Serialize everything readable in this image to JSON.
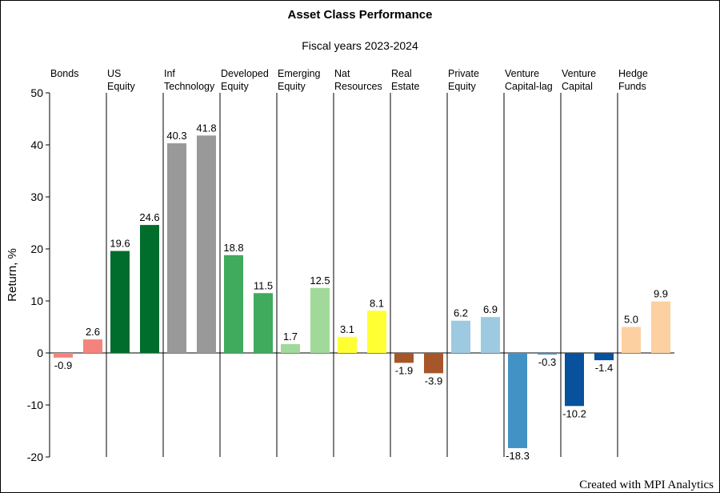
{
  "title": "Asset Class Performance",
  "subtitle": "Fiscal years 2023-2024",
  "credit": "Created with MPI Analytics",
  "chart_data": {
    "type": "bar",
    "title": "Asset Class Performance",
    "subtitle": "Fiscal years 2023-2024",
    "xlabel": "",
    "ylabel": "Return, %",
    "ylim": [
      -20,
      50
    ],
    "yticks": [
      -20,
      -10,
      0,
      10,
      20,
      30,
      40,
      50
    ],
    "grid": false,
    "groups": [
      {
        "label": [
          "Bonds"
        ],
        "values": [
          -0.9,
          2.6
        ],
        "colors": [
          "#f4837d",
          "#f4837d"
        ]
      },
      {
        "label": [
          "US",
          "Equity"
        ],
        "values": [
          19.6,
          24.6
        ],
        "colors": [
          "#006d2c",
          "#006d2c"
        ]
      },
      {
        "label": [
          "Inf",
          "Technology"
        ],
        "values": [
          40.3,
          41.8
        ],
        "colors": [
          "#999999",
          "#999999"
        ]
      },
      {
        "label": [
          "Developed",
          "Equity"
        ],
        "values": [
          18.8,
          11.5
        ],
        "colors": [
          "#41ab5d",
          "#41ab5d"
        ]
      },
      {
        "label": [
          "Emerging",
          "Equity"
        ],
        "values": [
          1.7,
          12.5
        ],
        "colors": [
          "#a1d99b",
          "#a1d99b"
        ]
      },
      {
        "label": [
          "Nat",
          "Resources"
        ],
        "values": [
          3.1,
          8.1
        ],
        "colors": [
          "#ffff33",
          "#ffff33"
        ]
      },
      {
        "label": [
          "Real",
          "Estate"
        ],
        "values": [
          -1.9,
          -3.9
        ],
        "colors": [
          "#a65628",
          "#a65628"
        ]
      },
      {
        "label": [
          "Private",
          "Equity"
        ],
        "values": [
          6.2,
          6.9
        ],
        "colors": [
          "#9ecae1",
          "#9ecae1"
        ]
      },
      {
        "label": [
          "Venture",
          "Capital-lag"
        ],
        "values": [
          -18.3,
          -0.3
        ],
        "colors": [
          "#4292c6",
          "#4292c6"
        ]
      },
      {
        "label": [
          "Venture",
          "Capital"
        ],
        "values": [
          -10.2,
          -1.4
        ],
        "colors": [
          "#08519c",
          "#08519c"
        ]
      },
      {
        "label": [
          "Hedge",
          "Funds"
        ],
        "values": [
          5.0,
          9.9
        ],
        "colors": [
          "#fdd0a2",
          "#fdd0a2"
        ]
      }
    ]
  }
}
